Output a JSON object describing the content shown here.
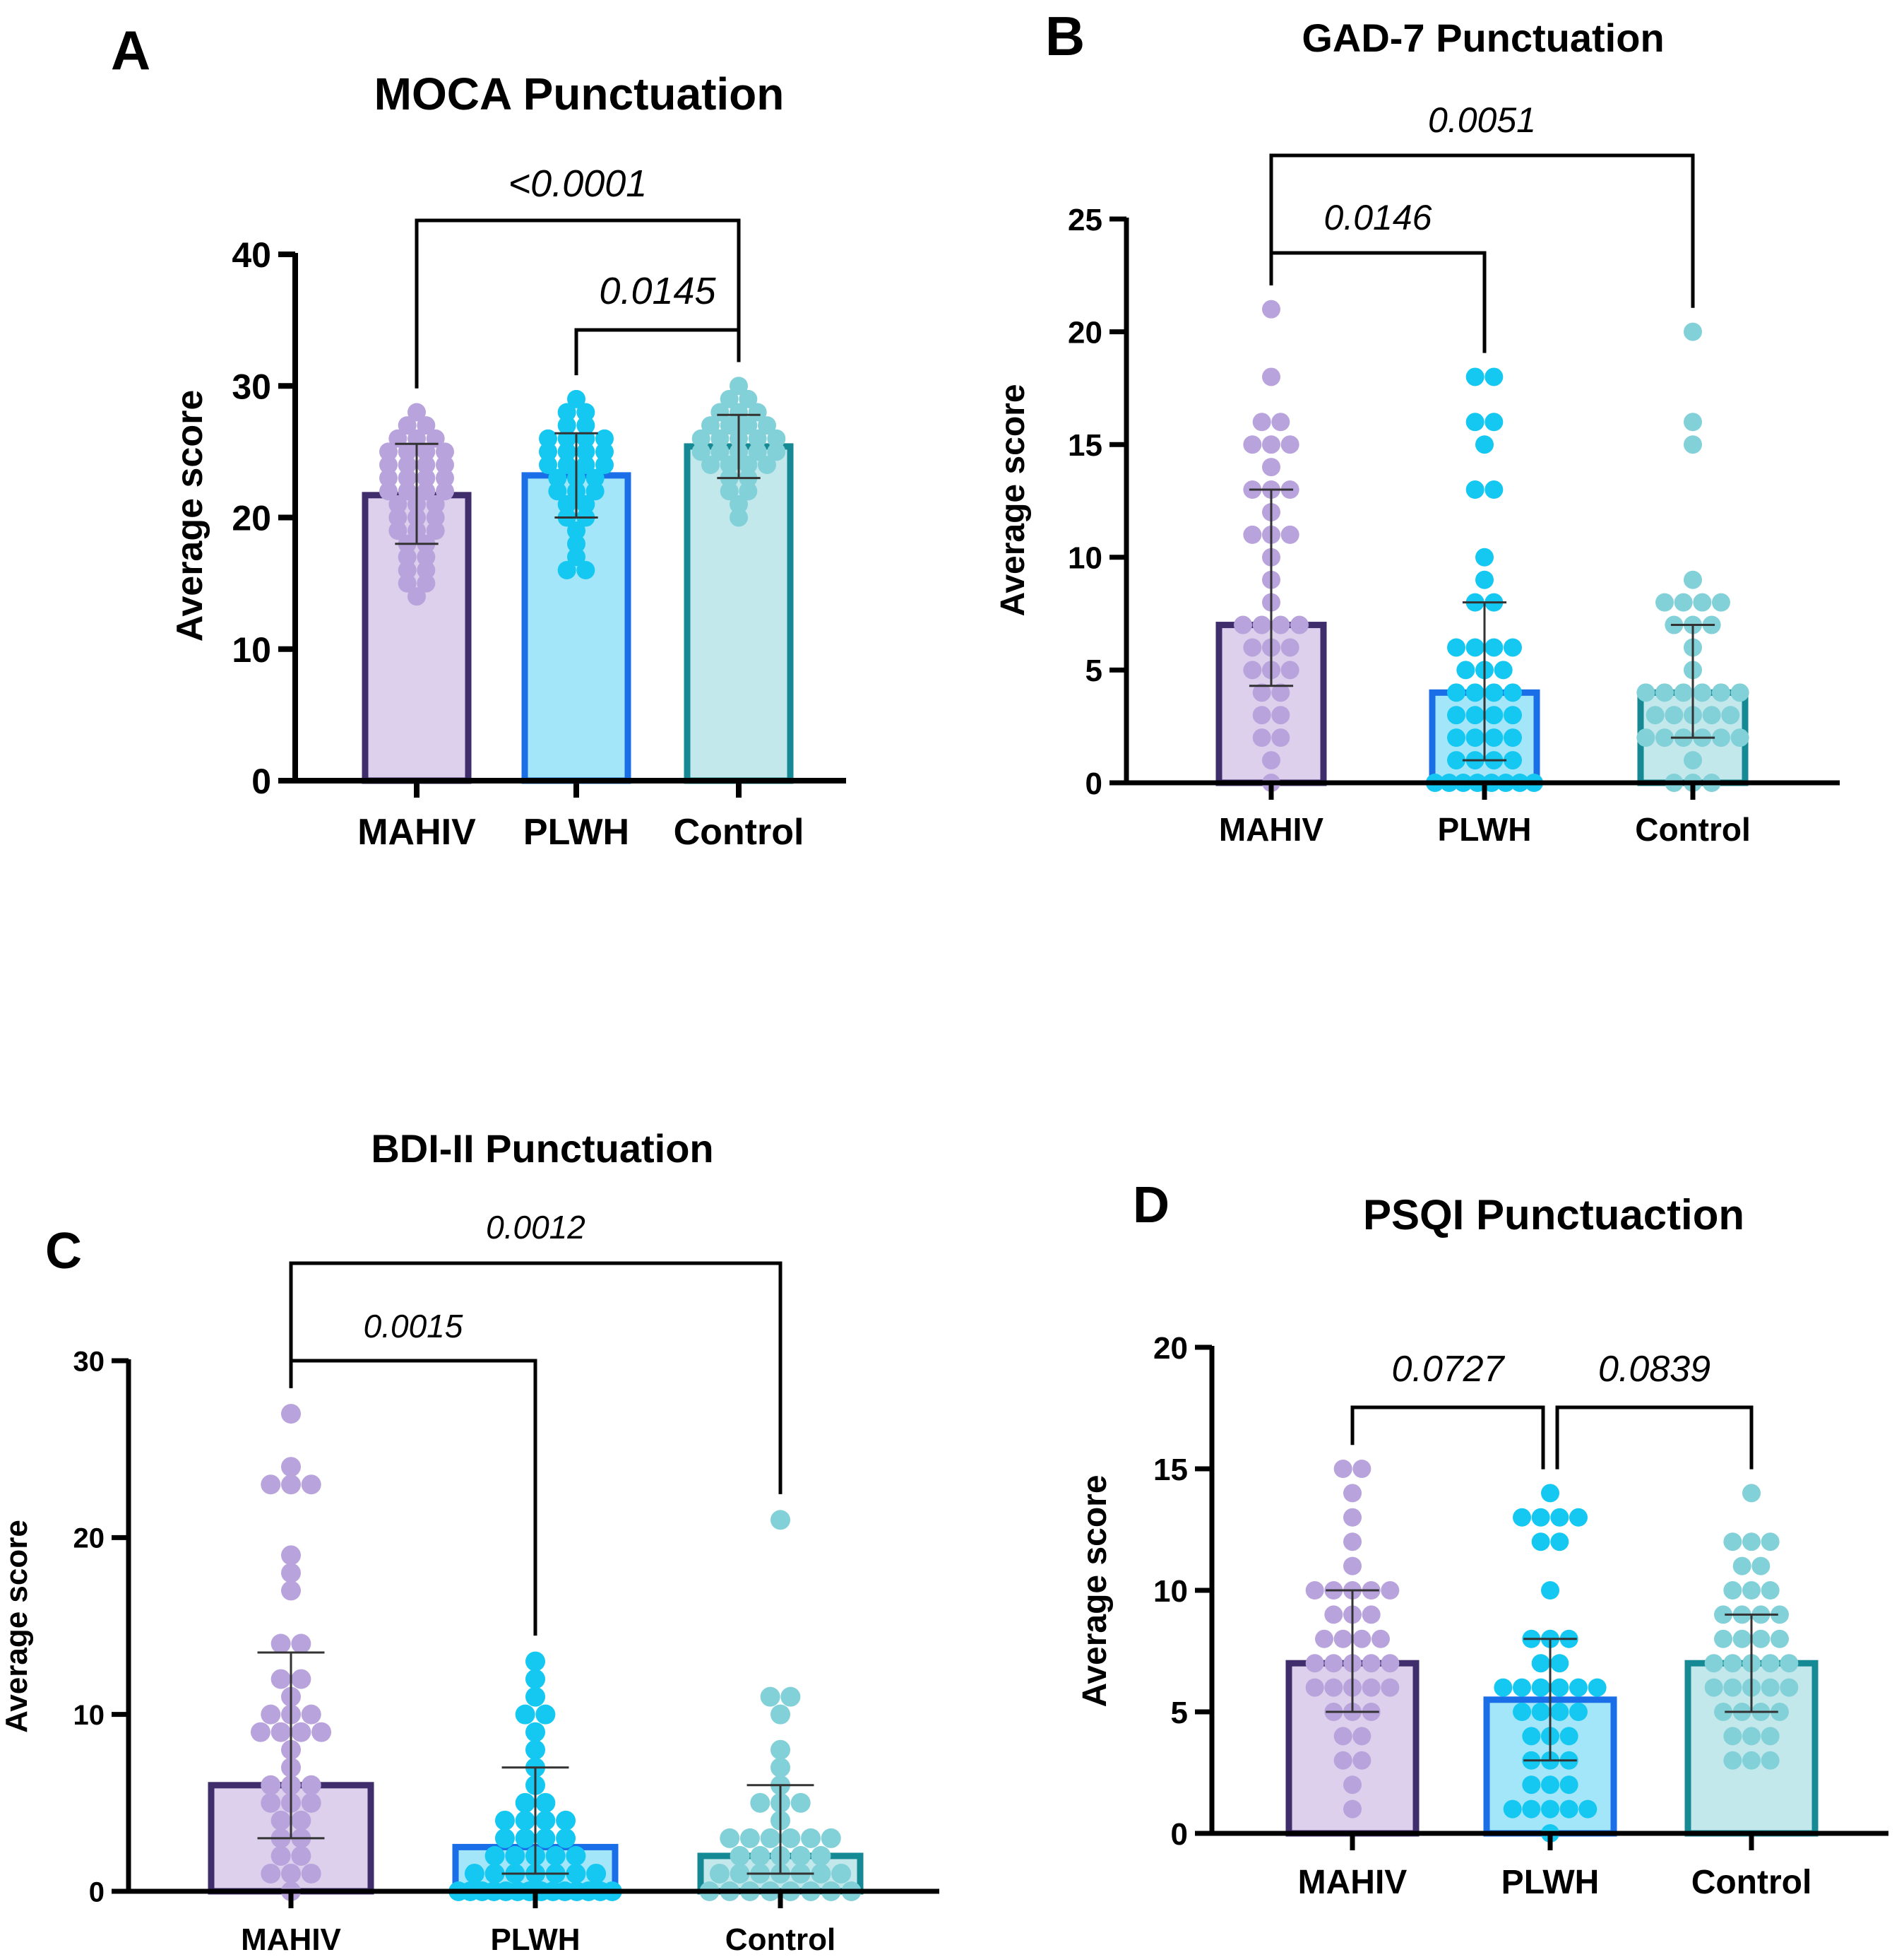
{
  "chart_data": [
    {
      "panel": "A",
      "type": "bar",
      "title": "MOCA Punctuation",
      "ylabel": "Average score",
      "xlabel": "",
      "ylim": [
        0,
        40
      ],
      "yticks": [
        0,
        10,
        20,
        30,
        40
      ],
      "categories": [
        "MAHIV",
        "PLWH",
        "Control"
      ],
      "series": [
        {
          "name": "MAHIV",
          "mean": 21.7,
          "sd_low": 18.0,
          "sd_high": 25.6,
          "points": [
            28,
            27,
            27,
            26,
            26,
            26,
            25,
            25,
            25,
            25,
            24,
            24,
            24,
            24,
            23,
            23,
            23,
            23,
            22,
            22,
            22,
            22,
            21,
            21,
            21,
            20,
            20,
            20,
            19,
            19,
            19,
            18,
            18,
            17,
            17,
            16,
            16,
            15,
            15,
            14
          ]
        },
        {
          "name": "PLWH",
          "mean": 23.2,
          "sd_low": 20.0,
          "sd_high": 26.4,
          "points": [
            29,
            28,
            28,
            27,
            27,
            26,
            26,
            26,
            26,
            25,
            25,
            25,
            25,
            24,
            24,
            24,
            24,
            23,
            23,
            23,
            22,
            22,
            22,
            21,
            21,
            20,
            20,
            19,
            18,
            17,
            16,
            16
          ]
        },
        {
          "name": "Control",
          "mean": 25.4,
          "sd_low": 23.0,
          "sd_high": 27.8,
          "points": [
            30,
            29,
            29,
            28,
            28,
            28,
            27,
            27,
            27,
            27,
            26,
            26,
            26,
            26,
            26,
            25,
            25,
            25,
            25,
            25,
            24,
            24,
            24,
            24,
            23,
            23,
            22,
            22,
            21,
            20
          ]
        }
      ],
      "comparisons": [
        {
          "from": "MAHIV",
          "to": "Control",
          "p": "<0.0001"
        },
        {
          "from": "PLWH",
          "to": "Control",
          "p": "0.0145"
        }
      ]
    },
    {
      "panel": "B",
      "type": "bar",
      "title": "GAD-7 Punctuation",
      "ylabel": "Average score",
      "xlabel": "",
      "ylim": [
        0,
        25
      ],
      "yticks": [
        0,
        5,
        10,
        15,
        20,
        25
      ],
      "categories": [
        "MAHIV",
        "PLWH",
        "Control"
      ],
      "series": [
        {
          "name": "MAHIV",
          "mean": 7,
          "sd_low": 4.3,
          "sd_high": 13,
          "points": [
            21,
            18,
            16,
            16,
            15,
            15,
            15,
            14,
            13,
            13,
            13,
            12,
            11,
            11,
            11,
            10,
            9,
            8,
            7,
            7,
            7,
            7,
            6,
            6,
            6,
            5,
            5,
            5,
            4,
            4,
            3,
            3,
            2,
            2,
            1,
            0
          ]
        },
        {
          "name": "PLWH",
          "mean": 4,
          "sd_low": 1,
          "sd_high": 8,
          "points": [
            18,
            18,
            16,
            16,
            15,
            13,
            13,
            10,
            9,
            8,
            8,
            6,
            6,
            6,
            6,
            5,
            5,
            5,
            4,
            4,
            4,
            4,
            3,
            3,
            3,
            3,
            2,
            2,
            2,
            2,
            1,
            1,
            1,
            1,
            0,
            0,
            0,
            0,
            0,
            0,
            0,
            0
          ]
        },
        {
          "name": "Control",
          "mean": 4,
          "sd_low": 2,
          "sd_high": 7,
          "points": [
            20,
            16,
            15,
            9,
            8,
            8,
            8,
            8,
            7,
            7,
            7,
            6,
            5,
            4,
            4,
            4,
            4,
            4,
            4,
            3,
            3,
            3,
            3,
            3,
            2,
            2,
            2,
            2,
            2,
            2,
            1,
            0,
            0,
            0
          ]
        }
      ],
      "comparisons": [
        {
          "from": "MAHIV",
          "to": "PLWH",
          "p": "0.0146"
        },
        {
          "from": "MAHIV",
          "to": "Control",
          "p": "0.0051"
        }
      ]
    },
    {
      "panel": "C",
      "type": "bar",
      "title": "BDI-II Punctuation",
      "ylabel": "Average score",
      "xlabel": "",
      "ylim": [
        0,
        30
      ],
      "yticks": [
        0,
        10,
        20,
        30
      ],
      "categories": [
        "MAHIV",
        "PLWH",
        "Control"
      ],
      "series": [
        {
          "name": "MAHIV",
          "mean": 6,
          "sd_low": 3,
          "sd_high": 13.5,
          "points": [
            27,
            24,
            23,
            23,
            23,
            19,
            18,
            17,
            14,
            14,
            12,
            12,
            11,
            10,
            10,
            10,
            9,
            9,
            9,
            9,
            8,
            7,
            6,
            6,
            6,
            5,
            5,
            5,
            4,
            4,
            3,
            3,
            2,
            2,
            1,
            1,
            1,
            0
          ]
        },
        {
          "name": "PLWH",
          "mean": 2.5,
          "sd_low": 1,
          "sd_high": 7,
          "points": [
            13,
            12,
            11,
            10,
            10,
            9,
            8,
            7,
            6,
            5,
            5,
            4,
            4,
            4,
            4,
            3,
            3,
            3,
            3,
            2,
            2,
            2,
            2,
            2,
            1,
            1,
            1,
            1,
            1,
            1,
            1,
            0,
            0,
            0,
            0,
            0,
            0,
            0,
            0,
            0,
            0,
            0,
            0,
            0,
            0
          ]
        },
        {
          "name": "Control",
          "mean": 2,
          "sd_low": 1,
          "sd_high": 6,
          "points": [
            21,
            11,
            11,
            10,
            8,
            7,
            6,
            5,
            5,
            5,
            4,
            3,
            3,
            3,
            3,
            3,
            3,
            2,
            2,
            2,
            2,
            2,
            1,
            1,
            1,
            1,
            1,
            1,
            1,
            0,
            0,
            0,
            0,
            0,
            0,
            0,
            0
          ]
        }
      ],
      "comparisons": [
        {
          "from": "MAHIV",
          "to": "PLWH",
          "p": "0.0015"
        },
        {
          "from": "MAHIV",
          "to": "Control",
          "p": "0.0012"
        }
      ]
    },
    {
      "panel": "D",
      "type": "bar",
      "title": "PSQI Punctuaction",
      "ylabel": "Average score",
      "xlabel": "",
      "ylim": [
        0,
        20
      ],
      "yticks": [
        0,
        5,
        10,
        15,
        20
      ],
      "categories": [
        "MAHIV",
        "PLWH",
        "Control"
      ],
      "series": [
        {
          "name": "MAHIV",
          "mean": 7,
          "sd_low": 5,
          "sd_high": 10,
          "points": [
            15,
            15,
            14,
            13,
            12,
            11,
            10,
            10,
            10,
            10,
            10,
            9,
            9,
            9,
            8,
            8,
            8,
            8,
            7,
            7,
            7,
            7,
            7,
            6,
            6,
            6,
            6,
            6,
            5,
            5,
            5,
            4,
            4,
            3,
            3,
            2,
            1
          ]
        },
        {
          "name": "PLWH",
          "mean": 5.5,
          "sd_low": 3,
          "sd_high": 8,
          "points": [
            14,
            13,
            13,
            13,
            13,
            12,
            12,
            10,
            8,
            8,
            8,
            7,
            7,
            6,
            6,
            6,
            6,
            6,
            6,
            5,
            5,
            5,
            5,
            4,
            4,
            4,
            3,
            3,
            3,
            2,
            2,
            2,
            1,
            1,
            1,
            1,
            1,
            0
          ]
        },
        {
          "name": "Control",
          "mean": 7,
          "sd_low": 5,
          "sd_high": 9,
          "points": [
            14,
            12,
            12,
            12,
            11,
            11,
            10,
            10,
            10,
            9,
            9,
            9,
            9,
            8,
            8,
            8,
            8,
            7,
            7,
            7,
            7,
            7,
            6,
            6,
            6,
            6,
            6,
            5,
            5,
            5,
            5,
            4,
            4,
            4,
            3,
            3,
            3
          ]
        }
      ],
      "comparisons": [
        {
          "from": "MAHIV",
          "to": "PLWH",
          "p": "0.0727"
        },
        {
          "from": "PLWH",
          "to": "Control",
          "p": "0.0839"
        }
      ]
    }
  ],
  "colors": {
    "MAHIV": {
      "fill": "#dcd0ec",
      "stroke": "#3f2e6b",
      "dot": "#b9a3dc"
    },
    "PLWH": {
      "fill": "#a3e6fa",
      "stroke": "#1a6ee8",
      "dot": "#14c8f2"
    },
    "Control": {
      "fill": "#c2e8ec",
      "stroke": "#168a94",
      "dot": "#82d1d8"
    }
  }
}
